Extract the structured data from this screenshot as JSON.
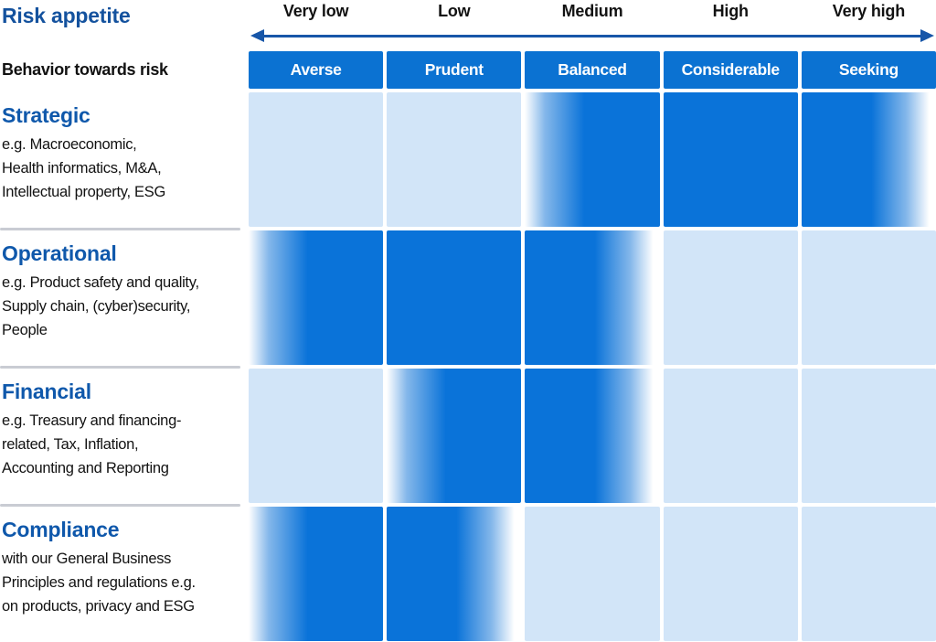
{
  "title": "Risk appetite",
  "behavior_label": "Behavior towards risk",
  "scale": [
    "Very low",
    "Low",
    "Medium",
    "High",
    "Very high"
  ],
  "columns": [
    "Averse",
    "Prudent",
    "Balanced",
    "Considerable",
    "Seeking"
  ],
  "rows": [
    {
      "title": "Strategic",
      "description": [
        "e.g. Macroeconomic,",
        "Health informatics, M&A,",
        "Intellectual property, ESG"
      ],
      "cells": [
        "none",
        "none",
        "fade-in",
        "full",
        "fade-out"
      ]
    },
    {
      "title": "Operational",
      "description": [
        "e.g. Product safety and quality,",
        "Supply chain, (cyber)security,",
        "People"
      ],
      "cells": [
        "fade-in",
        "full",
        "fade-out",
        "none",
        "none"
      ]
    },
    {
      "title": "Financial",
      "description": [
        "e.g. Treasury and financing-",
        "related, Tax, Inflation,",
        "Accounting and Reporting"
      ],
      "cells": [
        "none",
        "fade-in",
        "fade-out",
        "none",
        "none"
      ]
    },
    {
      "title": "Compliance",
      "description": [
        "with our General Business",
        "Principles and regulations e.g.",
        "on products, privacy and ESG"
      ],
      "cells": [
        "fade-in",
        "fade-out",
        "none",
        "none",
        "none"
      ]
    }
  ],
  "colors": {
    "strong_blue": "#0a73d9",
    "header_blue": "#0b72d2",
    "light_blue": "#d2e5f8",
    "title_blue": "#14529e",
    "section_title_blue": "#0f58ab",
    "arrow_blue": "#1756a8",
    "divider_gray": "#c9ccd3",
    "text_black": "#121212"
  },
  "chart_data": {
    "type": "heatmap",
    "title": "Risk appetite",
    "x_scale_labels": [
      "Very low",
      "Low",
      "Medium",
      "High",
      "Very high"
    ],
    "x_behavior_labels": [
      "Averse",
      "Prudent",
      "Balanced",
      "Considerable",
      "Seeking"
    ],
    "y_categories": [
      "Strategic",
      "Operational",
      "Financial",
      "Compliance"
    ],
    "cell_fill_matrix": [
      [
        "none",
        "none",
        "gradient-in",
        "full",
        "gradient-out"
      ],
      [
        "gradient-in",
        "full",
        "gradient-out",
        "none",
        "none"
      ],
      [
        "none",
        "gradient-in",
        "gradient-out",
        "none",
        "none"
      ],
      [
        "gradient-in",
        "gradient-out",
        "none",
        "none",
        "none"
      ]
    ],
    "appetite_ranges": [
      {
        "category": "Strategic",
        "behavior_from": "Balanced",
        "behavior_to": "Seeking",
        "appetite_from": "Medium",
        "appetite_to": "Very high"
      },
      {
        "category": "Operational",
        "behavior_from": "Averse",
        "behavior_to": "Balanced",
        "appetite_from": "Very low",
        "appetite_to": "Medium"
      },
      {
        "category": "Financial",
        "behavior_from": "Prudent",
        "behavior_to": "Balanced",
        "appetite_from": "Low",
        "appetite_to": "Medium"
      },
      {
        "category": "Compliance",
        "behavior_from": "Averse",
        "behavior_to": "Prudent",
        "appetite_from": "Very low",
        "appetite_to": "Low"
      }
    ],
    "legend_position": "none",
    "grid": "5 columns x 4 rows with white gaps"
  }
}
